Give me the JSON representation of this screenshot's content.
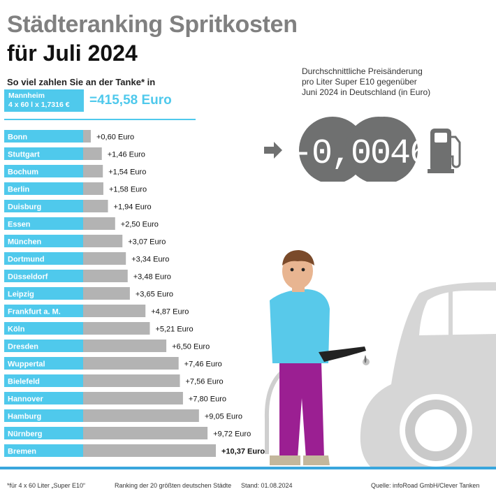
{
  "header": {
    "title_line1": "Städteranking Spritkosten",
    "title_line2": "für Juli 2024",
    "subtitle": "So viel zahlen Sie an der Tanke* in"
  },
  "reference": {
    "city": "Mannheim",
    "formula": "4 x 60 l x 1,7316 €",
    "total": "=415,58 Euro"
  },
  "price_change": {
    "note_lines": [
      "Durchschnittliche Preisänderung",
      "pro Liter Super E10 gegenüber",
      "Juni 2024 in Deutschland (in Euro)"
    ],
    "value": "-0,0046"
  },
  "colors": {
    "accent": "#4fc9ec",
    "bar": "#b3b3b3",
    "dark_gray": "#6f7070",
    "title_gray": "#808080",
    "ground": "#39a6dd"
  },
  "chart_data": {
    "type": "bar",
    "orientation": "horizontal",
    "categories": [
      "Bonn",
      "Stuttgart",
      "Bochum",
      "Berlin",
      "Duisburg",
      "Essen",
      "München",
      "Dortmund",
      "Düsseldorf",
      "Leipzig",
      "Frankfurt a. M.",
      "Köln",
      "Dresden",
      "Wuppertal",
      "Bielefeld",
      "Hannover",
      "Hamburg",
      "Nürnberg",
      "Bremen"
    ],
    "values": [
      0.6,
      1.46,
      1.54,
      1.58,
      1.94,
      2.5,
      3.07,
      3.34,
      3.48,
      3.65,
      4.87,
      5.21,
      6.5,
      7.46,
      7.56,
      7.8,
      9.05,
      9.72,
      10.37
    ],
    "value_labels": [
      "+0,60 Euro",
      "+1,46 Euro",
      "+1,54 Euro",
      "+1,58 Euro",
      "+1,94 Euro",
      "+2,50 Euro",
      "+3,07 Euro",
      "+3,34 Euro",
      "+3,48 Euro",
      "+3,65 Euro",
      "+4,87 Euro",
      "+5,21 Euro",
      "+6,50 Euro",
      "+7,46 Euro",
      "+7,56 Euro",
      "+7,80 Euro",
      "+9,05 Euro",
      "+9,72 Euro",
      "+10,37 Euro"
    ],
    "highlight_last": true
  },
  "footer": {
    "note": "*für 4 x 60 Liter „Super E10“",
    "ranking": "Ranking der 20 größten deutschen Städte",
    "date": "Stand: 01.08.2024",
    "source": "Quelle: infoRoad GmbH/Clever Tanken"
  }
}
